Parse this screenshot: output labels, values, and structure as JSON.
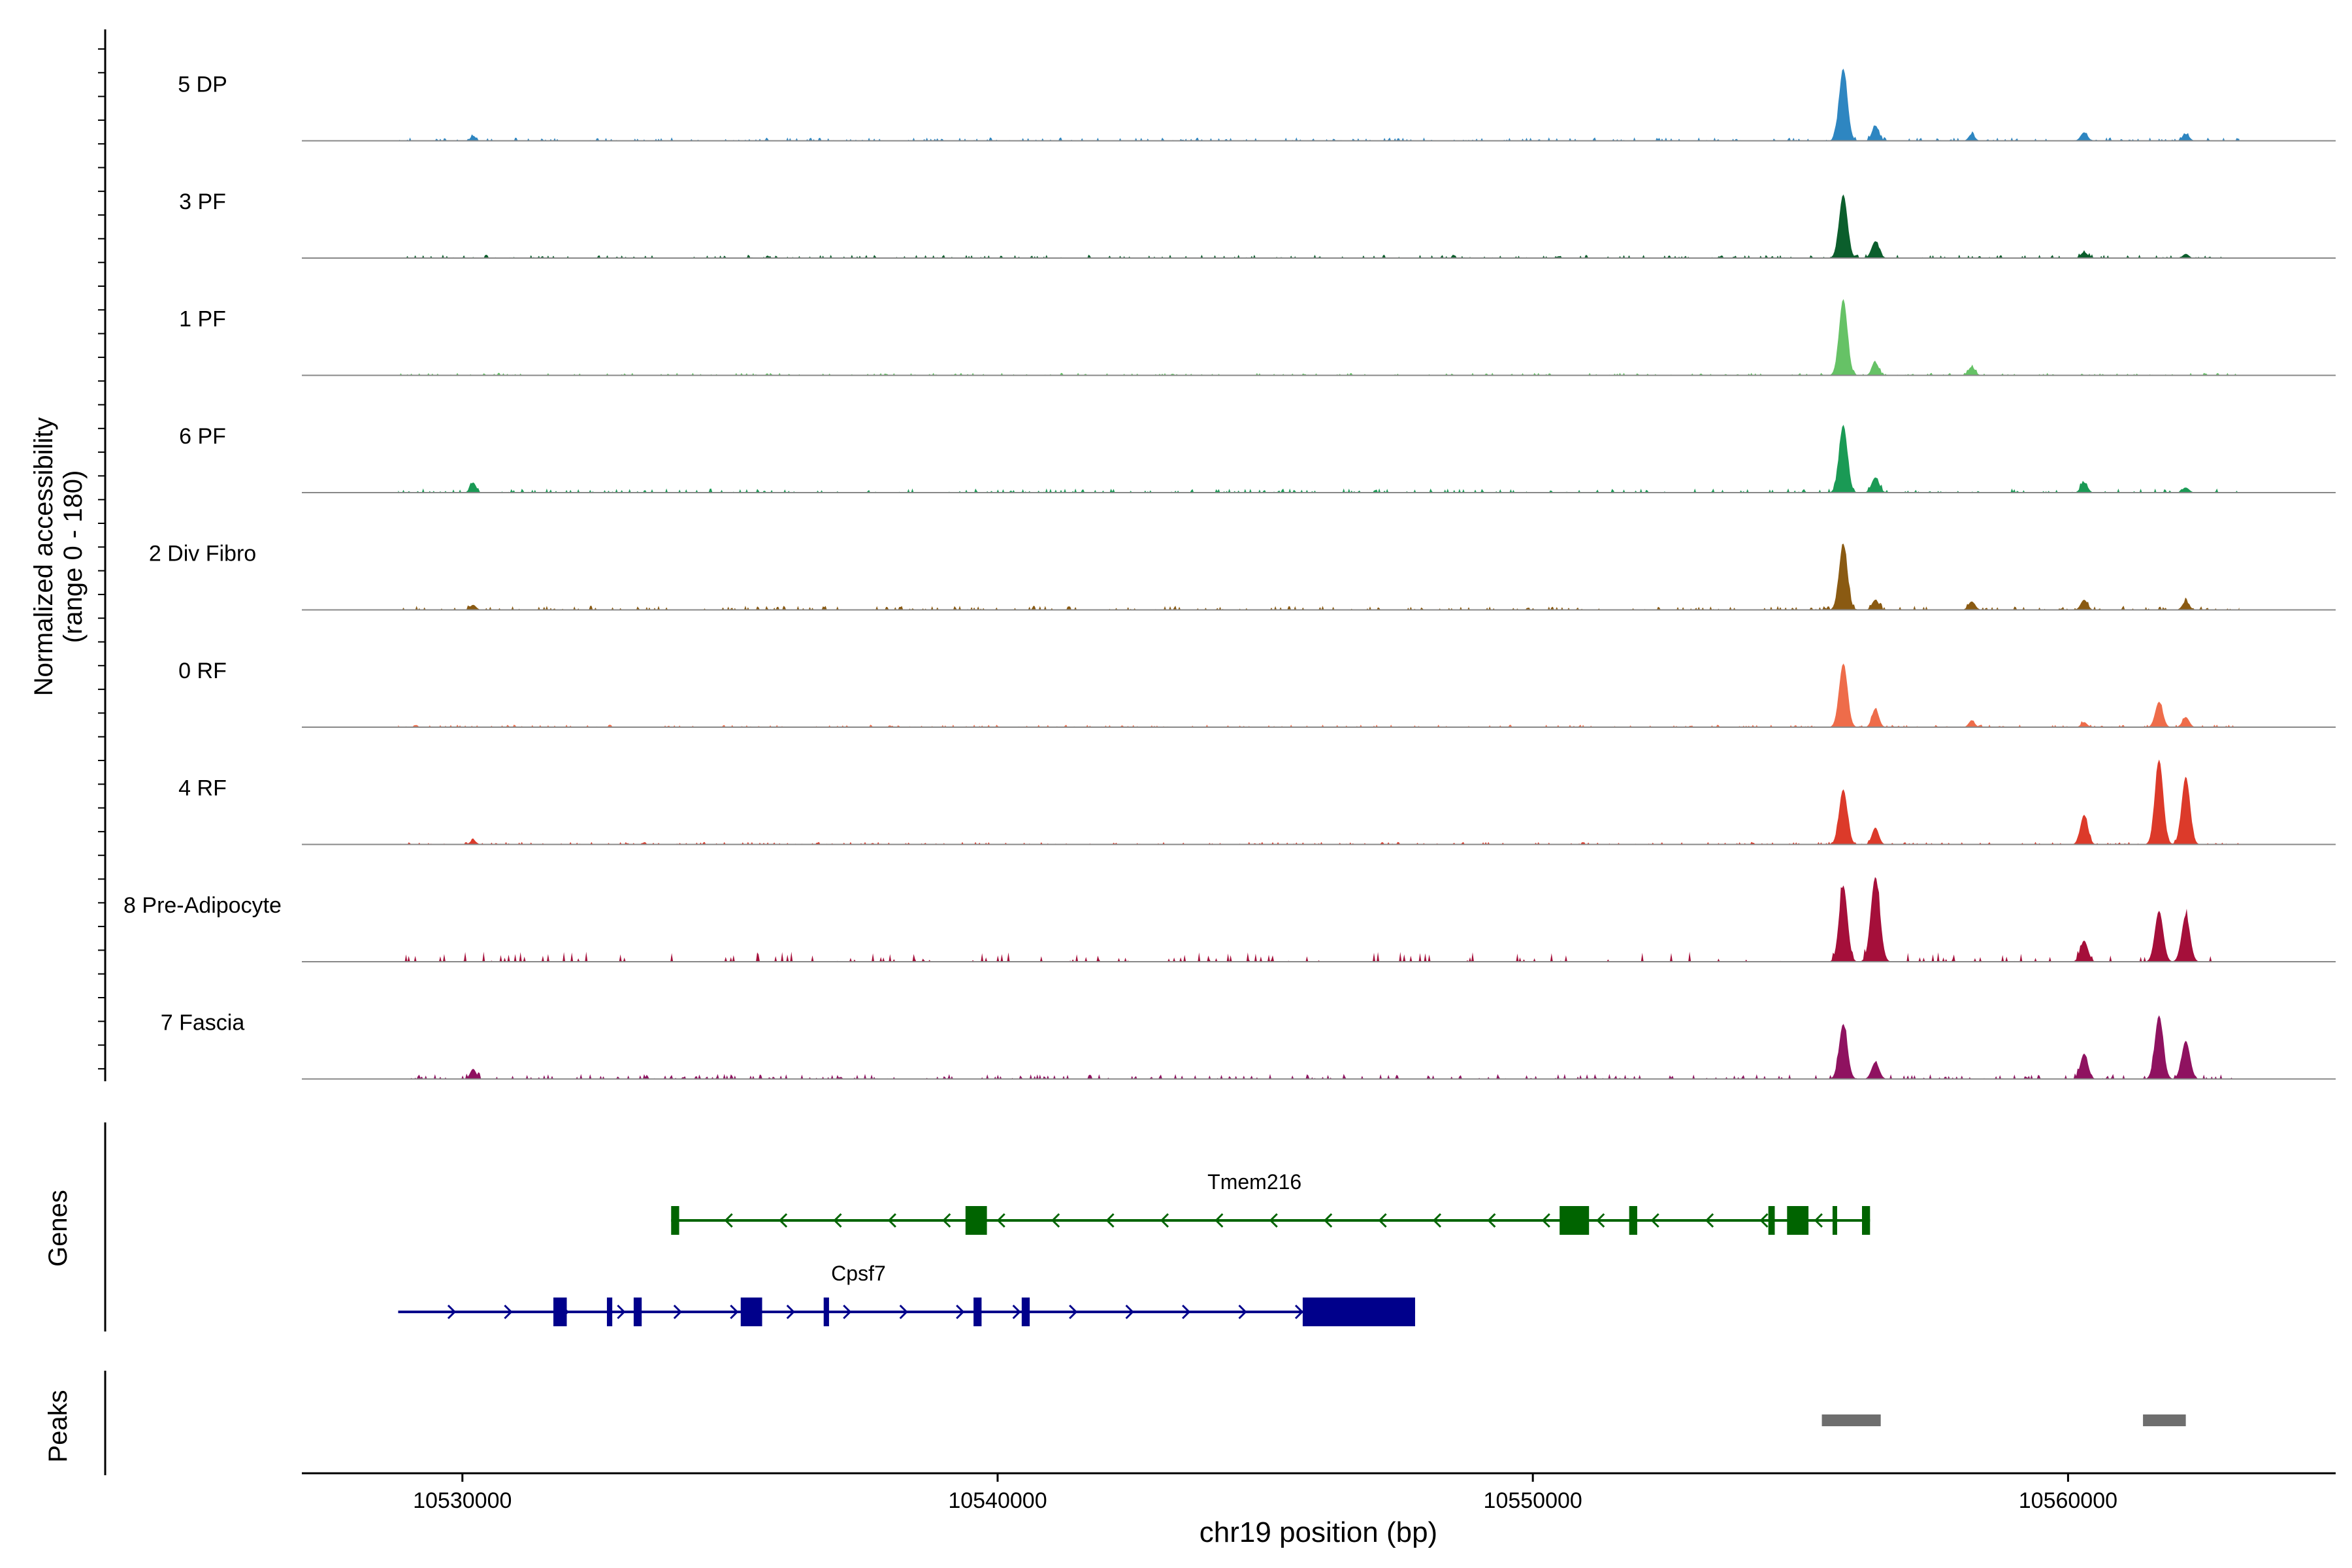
{
  "chart_data": {
    "type": "area",
    "subtype": "genome coverage tracks",
    "ylabel": "Normalized accessibility",
    "ylabel_range": "(range 0 - 180)",
    "xlabel": "chr19 position (bp)",
    "xlim": [
      10527000,
      10565000
    ],
    "xticks": [
      10530000,
      10540000,
      10550000,
      10560000
    ],
    "xtick_labels": [
      "10530000",
      "10540000",
      "10550000",
      "10560000"
    ],
    "tracks": [
      {
        "name": "5 DP",
        "color": "#2e86c1",
        "peaks": [
          [
            10555800,
            0.85,
            110
          ],
          [
            10556400,
            0.18,
            90
          ],
          [
            10558200,
            0.08,
            80
          ],
          [
            10560300,
            0.1,
            90
          ],
          [
            10562200,
            0.08,
            90
          ],
          [
            10530200,
            0.06,
            70
          ]
        ],
        "noise": 0.04,
        "seed": 11
      },
      {
        "name": "3 PF",
        "color": "#0b5e2c",
        "peaks": [
          [
            10555800,
            0.75,
            110
          ],
          [
            10556400,
            0.2,
            100
          ],
          [
            10560300,
            0.07,
            90
          ],
          [
            10562200,
            0.05,
            80
          ]
        ],
        "noise": 0.04,
        "seed": 22
      },
      {
        "name": "1 PF",
        "color": "#66c266",
        "peaks": [
          [
            10555800,
            0.9,
            110
          ],
          [
            10556400,
            0.15,
            90
          ],
          [
            10558200,
            0.1,
            90
          ]
        ],
        "noise": 0.03,
        "seed": 33
      },
      {
        "name": "6 PF",
        "color": "#1a9a55",
        "peaks": [
          [
            10555800,
            0.8,
            110
          ],
          [
            10556400,
            0.18,
            100
          ],
          [
            10560300,
            0.12,
            90
          ],
          [
            10530200,
            0.12,
            80
          ],
          [
            10562200,
            0.06,
            90
          ]
        ],
        "noise": 0.05,
        "seed": 44
      },
      {
        "name": "2 Div Fibro",
        "color": "#8a5a12",
        "peaks": [
          [
            10555800,
            0.78,
            110
          ],
          [
            10556400,
            0.12,
            90
          ],
          [
            10558200,
            0.1,
            90
          ],
          [
            10560300,
            0.12,
            90
          ],
          [
            10562200,
            0.1,
            90
          ],
          [
            10530200,
            0.06,
            80
          ]
        ],
        "noise": 0.05,
        "seed": 55
      },
      {
        "name": "0 RF",
        "color": "#ee6c4a",
        "peaks": [
          [
            10555800,
            0.75,
            110
          ],
          [
            10556400,
            0.22,
            90
          ],
          [
            10558200,
            0.08,
            80
          ],
          [
            10561700,
            0.3,
            100
          ],
          [
            10562200,
            0.12,
            90
          ],
          [
            10560300,
            0.06,
            80
          ]
        ],
        "noise": 0.03,
        "seed": 66
      },
      {
        "name": "4 RF",
        "color": "#dc3a2a",
        "peaks": [
          [
            10555800,
            0.65,
            110
          ],
          [
            10556400,
            0.2,
            90
          ],
          [
            10560300,
            0.35,
            100
          ],
          [
            10561700,
            1.0,
            110
          ],
          [
            10562200,
            0.8,
            110
          ],
          [
            10530200,
            0.05,
            80
          ]
        ],
        "noise": 0.03,
        "seed": 77
      },
      {
        "name": "8 Pre-Adipocyte",
        "color": "#a50f3a",
        "peaks": [
          [
            10555800,
            0.9,
            110
          ],
          [
            10556400,
            1.0,
            120
          ],
          [
            10560300,
            0.25,
            100
          ],
          [
            10561700,
            0.6,
            110
          ],
          [
            10562200,
            0.55,
            110
          ]
        ],
        "noise": 0.12,
        "seed": 88,
        "sparse": true
      },
      {
        "name": "7 Fascia",
        "color": "#8f1260",
        "peaks": [
          [
            10555800,
            0.65,
            110
          ],
          [
            10556400,
            0.2,
            100
          ],
          [
            10560300,
            0.3,
            100
          ],
          [
            10561700,
            0.75,
            110
          ],
          [
            10562200,
            0.45,
            110
          ],
          [
            10530200,
            0.12,
            80
          ]
        ],
        "noise": 0.06,
        "seed": 99
      }
    ],
    "genes_label": "Genes",
    "peaks_label": "Peaks",
    "genes": [
      {
        "name": "Tmem216",
        "color": "#006400",
        "strand": "-",
        "start": 10533900,
        "end": 10556300,
        "exons": [
          [
            10533900,
            10534050
          ],
          [
            10539400,
            10539800
          ],
          [
            10550500,
            10551050
          ],
          [
            10551800,
            10551950
          ],
          [
            10554400,
            10554520
          ],
          [
            10554750,
            10555150
          ],
          [
            10555600,
            10555650
          ],
          [
            10556150,
            10556300
          ]
        ]
      },
      {
        "name": "Cpsf7",
        "color": "#00008b",
        "strand": "+",
        "start": 10528800,
        "end": 10547800,
        "exons": [
          [
            10531700,
            10531950
          ],
          [
            10532700,
            10532800
          ],
          [
            10533200,
            10533350
          ],
          [
            10535200,
            10535600
          ],
          [
            10536750,
            10536850
          ],
          [
            10539550,
            10539700
          ],
          [
            10540450,
            10540600
          ],
          [
            10545700,
            10547800
          ]
        ]
      }
    ],
    "peak_regions": [
      [
        10555400,
        10556500
      ],
      [
        10561400,
        10562200
      ]
    ]
  }
}
